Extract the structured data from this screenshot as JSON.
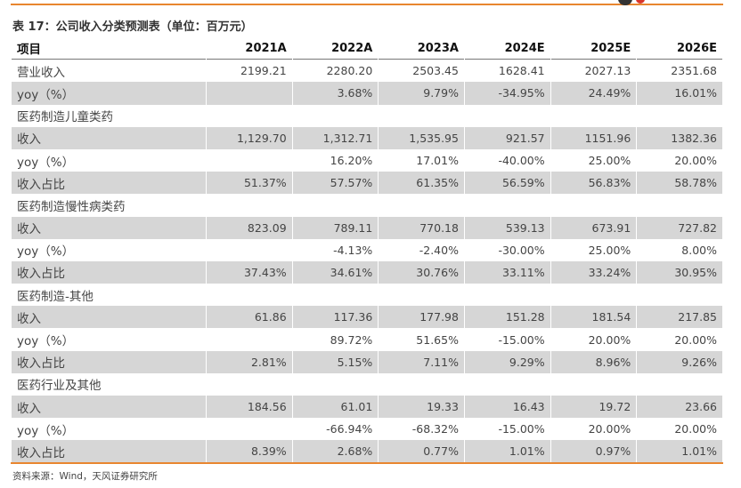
{
  "title": "表 17：公司收入分类预测表（单位：百万元）",
  "table": {
    "header": [
      "项目",
      "2021A",
      "2022A",
      "2023A",
      "2024E",
      "2025E",
      "2026E"
    ],
    "rows": [
      [
        "营业收入",
        "2199.21",
        "2280.20",
        "2503.45",
        "1628.41",
        "2027.13",
        "2351.68"
      ],
      [
        "yoy（%）",
        null,
        "3.68%",
        "9.79%",
        "-34.95%",
        "24.49%",
        "16.01%"
      ],
      [
        "医药制造儿童类药",
        null,
        null,
        null,
        null,
        null,
        null
      ],
      [
        "收入",
        "1,129.70",
        "1,312.71",
        "1,535.95",
        "921.57",
        "1151.96",
        "1382.36"
      ],
      [
        "yoy（%）",
        null,
        "16.20%",
        "17.01%",
        "-40.00%",
        "25.00%",
        "20.00%"
      ],
      [
        "收入占比",
        "51.37%",
        "57.57%",
        "61.35%",
        "56.59%",
        "56.83%",
        "58.78%"
      ],
      [
        "医药制造慢性病类药",
        null,
        null,
        null,
        null,
        null,
        null
      ],
      [
        "收入",
        "823.09",
        "789.11",
        "770.18",
        "539.13",
        "673.91",
        "727.82"
      ],
      [
        "yoy（%）",
        null,
        "-4.13%",
        "-2.40%",
        "-30.00%",
        "25.00%",
        "8.00%"
      ],
      [
        "收入占比",
        "37.43%",
        "34.61%",
        "30.76%",
        "33.11%",
        "33.24%",
        "30.95%"
      ],
      [
        "医药制造-其他",
        null,
        null,
        null,
        null,
        null,
        null
      ],
      [
        "收入",
        "61.86",
        "117.36",
        "177.98",
        "151.28",
        "181.54",
        "217.85"
      ],
      [
        "yoy（%）",
        null,
        "89.72%",
        "51.65%",
        "-15.00%",
        "20.00%",
        "20.00%"
      ],
      [
        "收入占比",
        "2.81%",
        "5.15%",
        "7.11%",
        "9.29%",
        "8.96%",
        "9.26%"
      ],
      [
        "医药行业及其他",
        null,
        null,
        null,
        null,
        null,
        null
      ],
      [
        "收入",
        "184.56",
        "61.01",
        "19.33",
        "16.43",
        "19.72",
        "23.66"
      ],
      [
        "yoy（%）",
        null,
        "-66.94%",
        "-68.32%",
        "-15.00%",
        "20.00%",
        "20.00%"
      ],
      [
        "收入占比",
        "8.39%",
        "2.68%",
        "0.77%",
        "1.01%",
        "0.97%",
        "1.01%"
      ]
    ]
  },
  "source": "资料来源：Wind，天风证券研究所"
}
